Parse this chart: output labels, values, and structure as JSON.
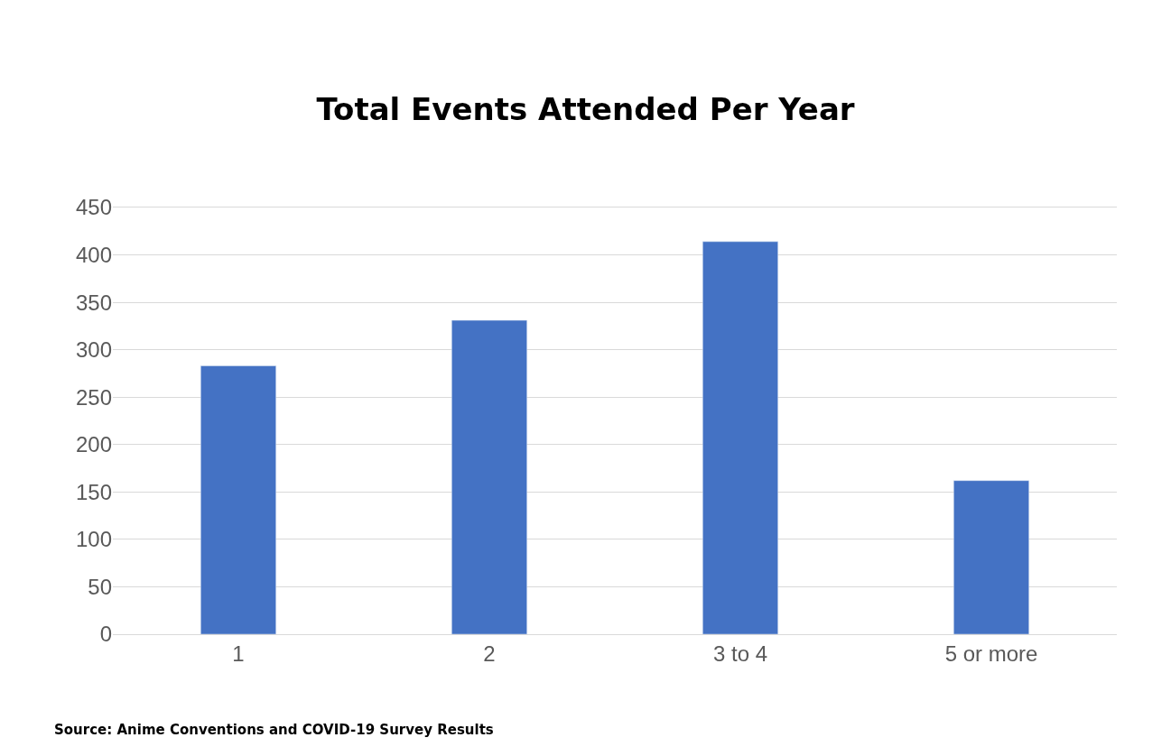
{
  "chart_data": {
    "type": "bar",
    "title": "Total Events Attended Per Year",
    "categories": [
      "1",
      "2",
      "3 to 4",
      "5 or more"
    ],
    "values": [
      283,
      331,
      414,
      162
    ],
    "color": "#4472c4",
    "ylim": [
      0,
      450
    ],
    "yticks": [
      0,
      50,
      100,
      150,
      200,
      250,
      300,
      350,
      400,
      450
    ],
    "grid": "y",
    "annotations": [
      "Source: Anime Conventions and COVID-19 Survey Results"
    ]
  }
}
